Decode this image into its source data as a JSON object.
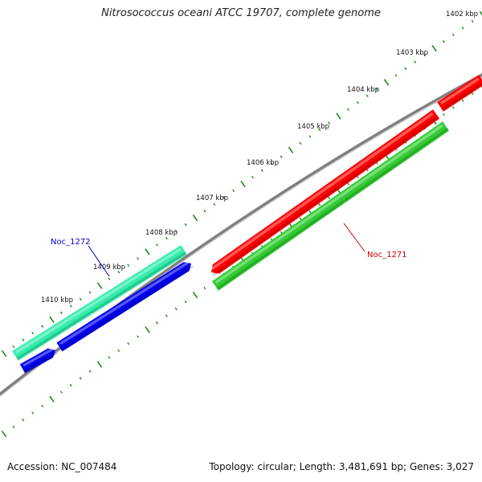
{
  "title": "Nitrosococcus oceani ATCC 19707, complete genome",
  "accession": "Accession: NC_007484",
  "summary": "Topology: circular; Length: 3,481,691 bp; Genes: 3,027",
  "ticks": [
    "1402 kbp",
    "1403 kbp",
    "1404 kbp",
    "1405 kbp",
    "1406 kbp",
    "1407 kbp",
    "1408 kbp",
    "1409 kbp",
    "1410 kbp"
  ],
  "gene_labels": [
    {
      "name": "Noc_1272",
      "color": "#0000cc"
    },
    {
      "name": "Noc_1271",
      "color": "#cc0000"
    }
  ],
  "colors": {
    "backbone": "#808080",
    "tick": "#1a8a1a",
    "red": "#ff0000",
    "green": "#33cc33",
    "cyan": "#33eeaa",
    "blue": "#0000ee"
  }
}
